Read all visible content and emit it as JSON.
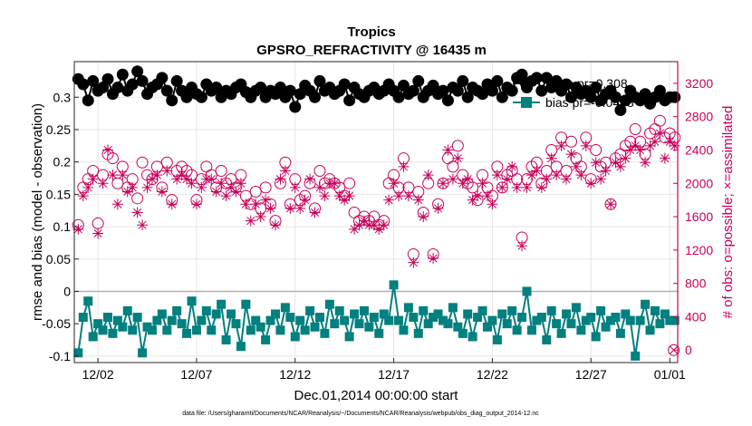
{
  "chart_data": {
    "type": "line",
    "title": "Tropics",
    "subtitle": "GPSRO_REFRACTIVITY @ 16435 m",
    "xlabel": "Dec.01,2014 00:00:00 start",
    "ylabel_left": "rmse and bias (model - observation)",
    "ylabel_right": "# of obs: o=possible; ×=assimilated",
    "footnote": "data file: /Users/gharamti/Documents/NCAR/Reanalysis/~/Documents/NCAR/Reanalysis/webpub/obs_diag_output_2014-12.nc",
    "x_range": [
      0.8,
      31.4
    ],
    "y_left_range": [
      -0.11,
      0.355
    ],
    "y_right_range": [
      -150,
      3460
    ],
    "x_ticks": [
      {
        "value": 2,
        "label": "12/02"
      },
      {
        "value": 7,
        "label": "12/07"
      },
      {
        "value": 12,
        "label": "12/12"
      },
      {
        "value": 17,
        "label": "12/17"
      },
      {
        "value": 22,
        "label": "12/22"
      },
      {
        "value": 27,
        "label": "12/27"
      },
      {
        "value": 31,
        "label": "01/01"
      }
    ],
    "y_left_ticks": [
      {
        "value": -0.1,
        "label": "-0.1"
      },
      {
        "value": -0.05,
        "label": "-0.05"
      },
      {
        "value": 0,
        "label": "0"
      },
      {
        "value": 0.05,
        "label": "0.05"
      },
      {
        "value": 0.1,
        "label": "0.1"
      },
      {
        "value": 0.15,
        "label": "0.15"
      },
      {
        "value": 0.2,
        "label": "0.2"
      },
      {
        "value": 0.25,
        "label": "0.25"
      },
      {
        "value": 0.3,
        "label": "0.3"
      }
    ],
    "y_right_ticks": [
      {
        "value": 0,
        "label": "0"
      },
      {
        "value": 400,
        "label": "400"
      },
      {
        "value": 800,
        "label": "800"
      },
      {
        "value": 1200,
        "label": "1200"
      },
      {
        "value": 1600,
        "label": "1600"
      },
      {
        "value": 2000,
        "label": "2000"
      },
      {
        "value": 2400,
        "label": "2400"
      },
      {
        "value": 2800,
        "label": "2800"
      },
      {
        "value": 3200,
        "label": "3200"
      }
    ],
    "zero_line": 0,
    "legend": [
      {
        "label": "rmse pr=0.308",
        "color": "#000000",
        "marker": "circle"
      },
      {
        "label": "bias pr=-0.0478",
        "color": "#00807f",
        "marker": "square"
      }
    ],
    "colors": {
      "rmse": "#000000",
      "bias": "#00807f",
      "obs": "#c8005a",
      "zero": "#b0b0b0"
    },
    "series": [
      {
        "name": "rmse",
        "axis": "left",
        "x": [
          1.0,
          1.25,
          1.5,
          1.75,
          2.0,
          2.25,
          2.5,
          2.75,
          3.0,
          3.25,
          3.5,
          3.75,
          4.0,
          4.25,
          4.5,
          4.75,
          5.0,
          5.25,
          5.5,
          5.75,
          6.0,
          6.25,
          6.5,
          6.75,
          7.0,
          7.25,
          7.5,
          7.75,
          8.0,
          8.25,
          8.5,
          8.75,
          9.0,
          9.25,
          9.5,
          9.75,
          10.0,
          10.25,
          10.5,
          10.75,
          11.0,
          11.25,
          11.5,
          11.75,
          12.0,
          12.25,
          12.5,
          12.75,
          13.0,
          13.25,
          13.5,
          13.75,
          14.0,
          14.25,
          14.5,
          14.75,
          15.0,
          15.25,
          15.5,
          15.75,
          16.0,
          16.25,
          16.5,
          16.75,
          17.0,
          17.25,
          17.5,
          17.75,
          18.0,
          18.25,
          18.5,
          18.75,
          19.0,
          19.25,
          19.5,
          19.75,
          20.0,
          20.25,
          20.5,
          20.75,
          21.0,
          21.25,
          21.5,
          21.75,
          22.0,
          22.25,
          22.5,
          22.75,
          23.0,
          23.25,
          23.5,
          23.75,
          24.0,
          24.25,
          24.5,
          24.75,
          25.0,
          25.25,
          25.5,
          25.75,
          26.0,
          26.25,
          26.5,
          26.75,
          27.0,
          27.25,
          27.5,
          27.75,
          28.0,
          28.25,
          28.5,
          28.75,
          29.0,
          29.25,
          29.5,
          29.75,
          30.0,
          30.25,
          30.5,
          30.75,
          31.0,
          31.25
        ],
        "values": [
          0.328,
          0.32,
          0.295,
          0.325,
          0.31,
          0.315,
          0.328,
          0.305,
          0.315,
          0.335,
          0.31,
          0.32,
          0.34,
          0.325,
          0.305,
          0.315,
          0.32,
          0.33,
          0.31,
          0.295,
          0.325,
          0.31,
          0.3,
          0.315,
          0.305,
          0.3,
          0.32,
          0.31,
          0.315,
          0.3,
          0.31,
          0.305,
          0.315,
          0.32,
          0.308,
          0.3,
          0.31,
          0.315,
          0.3,
          0.31,
          0.305,
          0.315,
          0.3,
          0.31,
          0.285,
          0.305,
          0.318,
          0.31,
          0.3,
          0.325,
          0.31,
          0.315,
          0.305,
          0.31,
          0.32,
          0.295,
          0.315,
          0.305,
          0.3,
          0.31,
          0.315,
          0.305,
          0.31,
          0.32,
          0.31,
          0.3,
          0.318,
          0.305,
          0.31,
          0.325,
          0.3,
          0.31,
          0.318,
          0.305,
          0.31,
          0.295,
          0.315,
          0.31,
          0.325,
          0.3,
          0.315,
          0.31,
          0.305,
          0.32,
          0.31,
          0.325,
          0.3,
          0.315,
          0.31,
          0.33,
          0.335,
          0.315,
          0.325,
          0.33,
          0.31,
          0.33,
          0.315,
          0.325,
          0.31,
          0.32,
          0.3,
          0.315,
          0.305,
          0.31,
          0.3,
          0.315,
          0.295,
          0.305,
          0.31,
          0.3,
          0.28,
          0.295,
          0.31,
          0.3,
          0.295,
          0.305,
          0.29,
          0.3,
          0.31,
          0.295,
          0.3,
          0.3
        ]
      },
      {
        "name": "bias",
        "axis": "left",
        "x": [
          1.0,
          1.25,
          1.5,
          1.75,
          2.0,
          2.25,
          2.5,
          2.75,
          3.0,
          3.25,
          3.5,
          3.75,
          4.0,
          4.25,
          4.5,
          4.75,
          5.0,
          5.25,
          5.5,
          5.75,
          6.0,
          6.25,
          6.5,
          6.75,
          7.0,
          7.25,
          7.5,
          7.75,
          8.0,
          8.25,
          8.5,
          8.75,
          9.0,
          9.25,
          9.5,
          9.75,
          10.0,
          10.25,
          10.5,
          10.75,
          11.0,
          11.25,
          11.5,
          11.75,
          12.0,
          12.25,
          12.5,
          12.75,
          13.0,
          13.25,
          13.5,
          13.75,
          14.0,
          14.25,
          14.5,
          14.75,
          15.0,
          15.25,
          15.5,
          15.75,
          16.0,
          16.25,
          16.5,
          16.75,
          17.0,
          17.25,
          17.5,
          17.75,
          18.0,
          18.25,
          18.5,
          18.75,
          19.0,
          19.25,
          19.5,
          19.75,
          20.0,
          20.25,
          20.5,
          20.75,
          21.0,
          21.25,
          21.5,
          21.75,
          22.0,
          22.25,
          22.5,
          22.75,
          23.0,
          23.25,
          23.5,
          23.75,
          24.0,
          24.25,
          24.5,
          24.75,
          25.0,
          25.25,
          25.5,
          25.75,
          26.0,
          26.25,
          26.5,
          26.75,
          27.0,
          27.25,
          27.5,
          27.75,
          28.0,
          28.25,
          28.5,
          28.75,
          29.0,
          29.25,
          29.5,
          29.75,
          30.0,
          30.25,
          30.5,
          30.75,
          31.0,
          31.25
        ],
        "values": [
          -0.095,
          -0.04,
          -0.015,
          -0.07,
          -0.05,
          -0.06,
          -0.04,
          -0.065,
          -0.045,
          -0.055,
          -0.03,
          -0.06,
          -0.04,
          -0.095,
          -0.055,
          -0.06,
          -0.045,
          -0.035,
          -0.06,
          -0.045,
          -0.03,
          -0.05,
          -0.065,
          -0.015,
          -0.06,
          -0.045,
          -0.03,
          -0.06,
          -0.035,
          -0.02,
          -0.075,
          -0.035,
          -0.05,
          -0.085,
          -0.02,
          -0.06,
          -0.045,
          -0.055,
          -0.075,
          -0.045,
          -0.035,
          -0.06,
          -0.025,
          -0.04,
          -0.07,
          -0.045,
          -0.06,
          -0.03,
          -0.055,
          -0.04,
          -0.065,
          -0.02,
          -0.05,
          -0.03,
          -0.045,
          -0.07,
          -0.035,
          -0.05,
          -0.03,
          -0.055,
          -0.04,
          -0.065,
          -0.035,
          -0.045,
          0.01,
          -0.045,
          -0.06,
          -0.025,
          -0.04,
          -0.065,
          -0.03,
          -0.05,
          -0.04,
          -0.035,
          -0.045,
          -0.05,
          -0.025,
          -0.055,
          -0.065,
          -0.035,
          -0.07,
          -0.04,
          -0.03,
          -0.055,
          -0.045,
          -0.075,
          -0.035,
          -0.05,
          -0.03,
          -0.06,
          -0.04,
          0.0,
          -0.06,
          -0.045,
          -0.04,
          -0.075,
          -0.03,
          -0.05,
          -0.065,
          -0.035,
          -0.05,
          -0.025,
          -0.06,
          -0.045,
          -0.04,
          -0.07,
          -0.03,
          -0.055,
          -0.045,
          -0.04,
          -0.065,
          -0.035,
          -0.045,
          -0.1,
          -0.045,
          -0.02,
          -0.06,
          -0.03,
          -0.05,
          -0.035,
          -0.045,
          -0.045
        ]
      },
      {
        "name": "possible",
        "axis": "right",
        "marker": "circle-open",
        "x": [
          1.0,
          1.25,
          1.5,
          1.75,
          2.0,
          2.25,
          2.5,
          2.75,
          3.0,
          3.25,
          3.5,
          3.75,
          4.0,
          4.25,
          4.5,
          4.75,
          5.0,
          5.25,
          5.5,
          5.75,
          6.0,
          6.25,
          6.5,
          6.75,
          7.0,
          7.25,
          7.5,
          7.75,
          8.0,
          8.25,
          8.5,
          8.75,
          9.0,
          9.25,
          9.5,
          9.75,
          10.0,
          10.25,
          10.5,
          10.75,
          11.0,
          11.25,
          11.5,
          11.75,
          12.0,
          12.25,
          12.5,
          12.75,
          13.0,
          13.25,
          13.5,
          13.75,
          14.0,
          14.25,
          14.5,
          14.75,
          15.0,
          15.25,
          15.5,
          15.75,
          16.0,
          16.25,
          16.5,
          16.75,
          17.0,
          17.25,
          17.5,
          17.75,
          18.0,
          18.25,
          18.5,
          18.75,
          19.0,
          19.25,
          19.5,
          19.75,
          20.0,
          20.25,
          20.5,
          20.75,
          21.0,
          21.25,
          21.5,
          21.75,
          22.0,
          22.25,
          22.5,
          22.75,
          23.0,
          23.25,
          23.5,
          23.75,
          24.0,
          24.25,
          24.5,
          24.75,
          25.0,
          25.25,
          25.5,
          25.75,
          26.0,
          26.25,
          26.5,
          26.75,
          27.0,
          27.25,
          27.5,
          27.75,
          28.0,
          28.25,
          28.5,
          28.75,
          29.0,
          29.25,
          29.5,
          29.75,
          30.0,
          30.25,
          30.5,
          30.75,
          31.0,
          31.25
        ],
        "values": [
          1500,
          1950,
          2050,
          2150,
          1520,
          2100,
          2350,
          2300,
          2000,
          2200,
          1950,
          2050,
          1820,
          2250,
          2100,
          2050,
          2200,
          1950,
          2250,
          1800,
          2150,
          2200,
          2150,
          2100,
          1800,
          2050,
          2200,
          2100,
          1950,
          2150,
          2000,
          2050,
          1950,
          2100,
          1850,
          1750,
          1900,
          1700,
          1950,
          1750,
          1550,
          2000,
          2250,
          1750,
          2050,
          1800,
          1850,
          2000,
          1700,
          2150,
          2000,
          2050,
          2000,
          1950,
          1850,
          2000,
          1650,
          1550,
          1600,
          1550,
          1600,
          1500,
          1550,
          2000,
          2100,
          1950,
          2300,
          1950,
          1150,
          1900,
          1650,
          2000,
          1150,
          1750,
          2000,
          2300,
          2200,
          2450,
          2100,
          2000,
          1950,
          1800,
          2100,
          1950,
          1850,
          2200,
          1950,
          2100,
          2150,
          2050,
          1350,
          2050,
          2200,
          2250,
          2000,
          2150,
          2400,
          2200,
          2550,
          2150,
          2500,
          2300,
          2200,
          2550,
          2050,
          2400,
          2200,
          2250,
          1750,
          2300,
          2350,
          2450,
          2500,
          2650,
          2500,
          2350,
          2600,
          2650,
          2750,
          2550,
          2600,
          2550
        ]
      },
      {
        "name": "assimilated",
        "axis": "right",
        "marker": "asterisk",
        "x": [
          1.0,
          1.25,
          1.5,
          1.75,
          2.0,
          2.25,
          2.5,
          2.75,
          3.0,
          3.25,
          3.5,
          3.75,
          4.0,
          4.25,
          4.5,
          4.75,
          5.0,
          5.25,
          5.5,
          5.75,
          6.0,
          6.25,
          6.5,
          6.75,
          7.0,
          7.25,
          7.5,
          7.75,
          8.0,
          8.25,
          8.5,
          8.75,
          9.0,
          9.25,
          9.5,
          9.75,
          10.0,
          10.25,
          10.5,
          10.75,
          11.0,
          11.25,
          11.5,
          11.75,
          12.0,
          12.25,
          12.5,
          12.75,
          13.0,
          13.25,
          13.5,
          13.75,
          14.0,
          14.25,
          14.5,
          14.75,
          15.0,
          15.25,
          15.5,
          15.75,
          16.0,
          16.25,
          16.5,
          16.75,
          17.0,
          17.25,
          17.5,
          17.75,
          18.0,
          18.25,
          18.5,
          18.75,
          19.0,
          19.25,
          19.5,
          19.75,
          20.0,
          20.25,
          20.5,
          20.75,
          21.0,
          21.25,
          21.5,
          21.75,
          22.0,
          22.25,
          22.5,
          22.75,
          23.0,
          23.25,
          23.5,
          23.75,
          24.0,
          24.25,
          24.5,
          24.75,
          25.0,
          25.25,
          25.5,
          25.75,
          26.0,
          26.25,
          26.5,
          26.75,
          27.0,
          27.25,
          27.5,
          27.75,
          28.0,
          28.25,
          28.5,
          28.75,
          29.0,
          29.25,
          29.5,
          29.75,
          30.0,
          30.25,
          30.5,
          30.75,
          31.0,
          31.25
        ],
        "values": [
          1450,
          1850,
          1950,
          2050,
          1400,
          2000,
          2400,
          2100,
          1750,
          2100,
          1900,
          1950,
          1650,
          1500,
          1950,
          2050,
          2100,
          1900,
          2150,
          1750,
          2050,
          2100,
          2050,
          2000,
          1750,
          1950,
          2050,
          2050,
          1900,
          2000,
          1850,
          1950,
          1900,
          2000,
          1750,
          1550,
          1750,
          1600,
          1800,
          1700,
          1500,
          2050,
          2150,
          1700,
          1950,
          1700,
          1800,
          2050,
          1650,
          1950,
          1850,
          2000,
          2000,
          1850,
          1800,
          1850,
          1450,
          1500,
          1550,
          1500,
          1500,
          1450,
          1500,
          1800,
          2000,
          1850,
          2200,
          1850,
          1050,
          1800,
          1600,
          2100,
          1100,
          1700,
          2000,
          2400,
          2050,
          2300,
          2000,
          2050,
          1800,
          1850,
          2000,
          1850,
          1750,
          2100,
          1950,
          2050,
          2200,
          1950,
          1250,
          1950,
          2100,
          2150,
          1950,
          2050,
          2300,
          2100,
          2450,
          2050,
          2350,
          2200,
          2100,
          2450,
          2000,
          2250,
          2050,
          2150,
          1750,
          2250,
          2200,
          2300,
          2400,
          2450,
          2400,
          2250,
          2450,
          2500,
          2600,
          2300,
          2500,
          2450
        ]
      }
    ]
  }
}
